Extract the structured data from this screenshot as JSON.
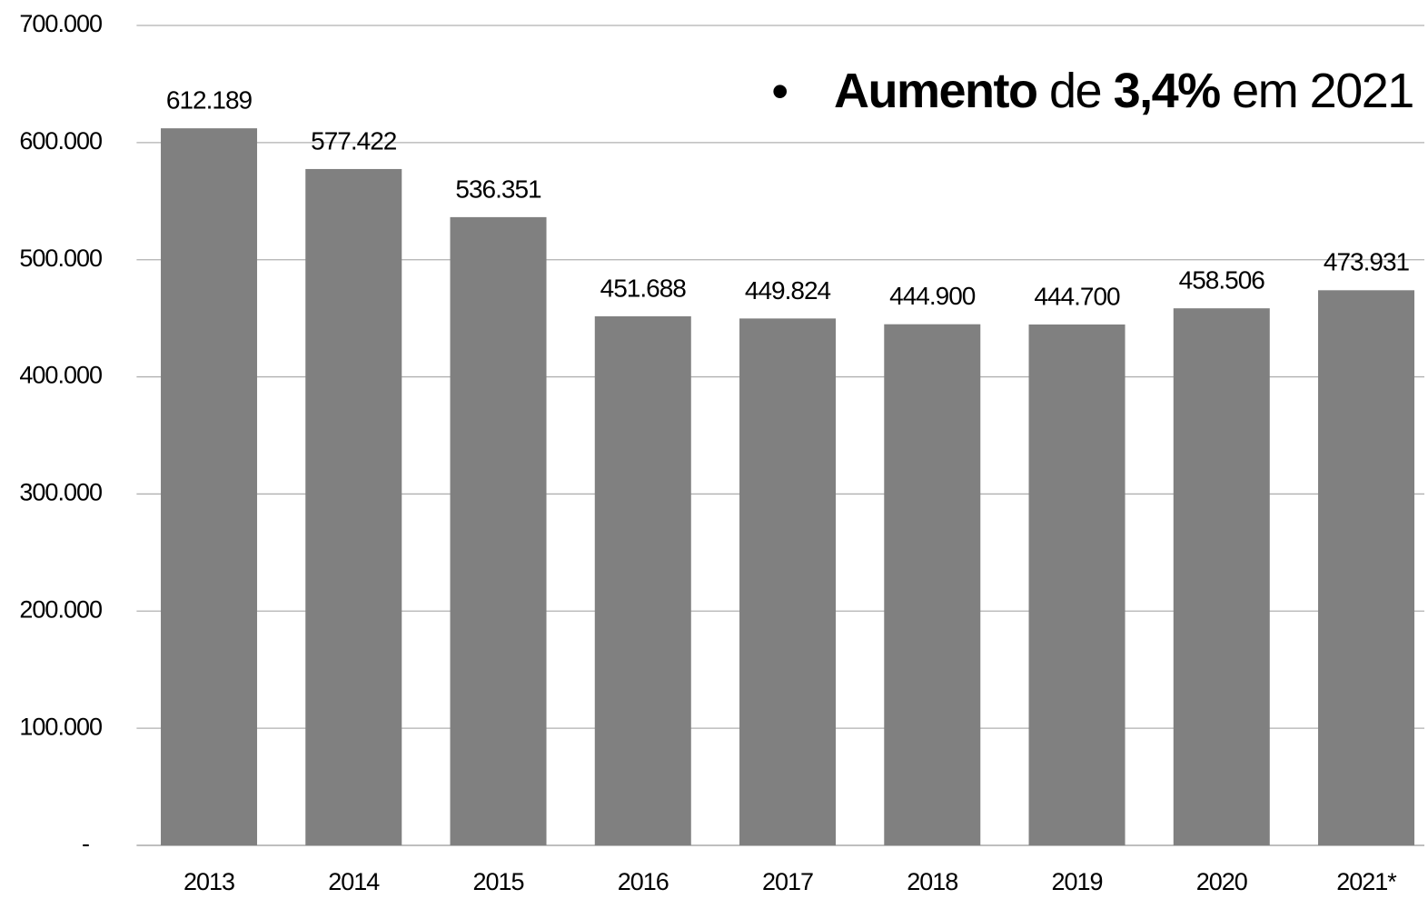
{
  "chart_data": {
    "type": "bar",
    "categories": [
      "2013",
      "2014",
      "2015",
      "2016",
      "2017",
      "2018",
      "2019",
      "2020",
      "2021*"
    ],
    "values": [
      612189,
      577422,
      536351,
      451688,
      449824,
      444900,
      444700,
      458506,
      473931
    ],
    "value_labels": [
      "612.189",
      "577.422",
      "536.351",
      "451.688",
      "449.824",
      "444.900",
      "444.700",
      "458.506",
      "473.931"
    ],
    "color": "#808080",
    "ylim": [
      0,
      700000
    ],
    "yticks": [
      {
        "value": 0,
        "label": "-"
      },
      {
        "value": 100000,
        "label": "100.000"
      },
      {
        "value": 200000,
        "label": "200.000"
      },
      {
        "value": 300000,
        "label": "300.000"
      },
      {
        "value": 400000,
        "label": "400.000"
      },
      {
        "value": 500000,
        "label": "500.000"
      },
      {
        "value": 600000,
        "label": "600.000"
      },
      {
        "value": 700000,
        "label": "700.000"
      }
    ],
    "grid": true,
    "annotation": {
      "bullet": "•",
      "runs": [
        {
          "text": "Aumento",
          "bold": true
        },
        {
          "text": " de ",
          "bold": false
        },
        {
          "text": "3,4%",
          "bold": true
        },
        {
          "text": " em 2021",
          "bold": false
        }
      ]
    }
  }
}
